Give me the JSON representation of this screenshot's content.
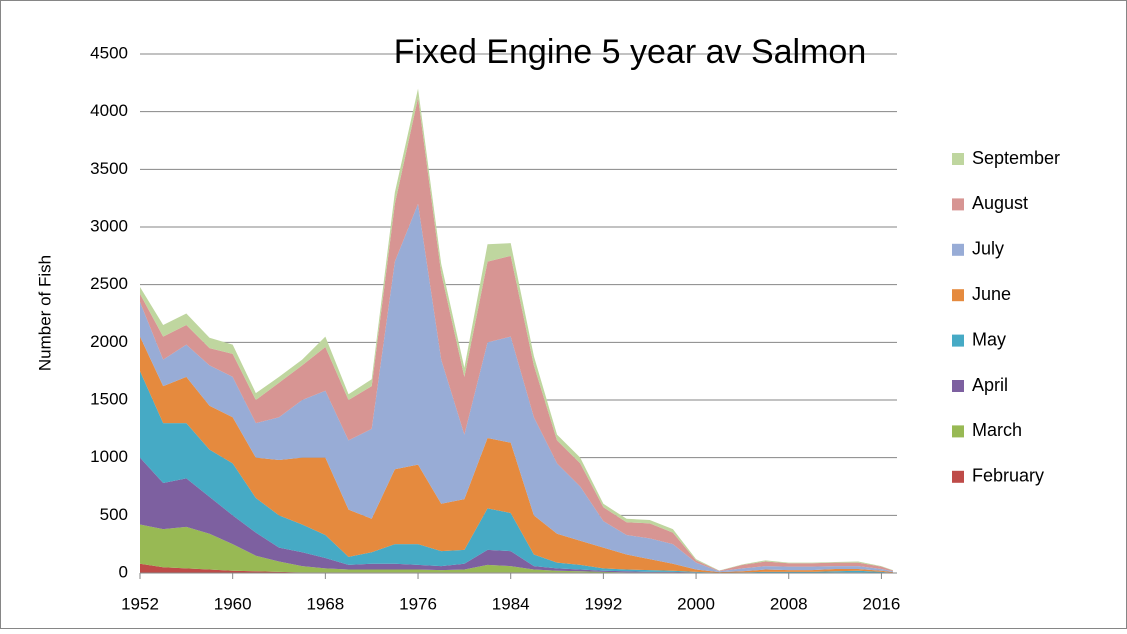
{
  "chart_data": {
    "type": "stacked_area",
    "title": "Fixed Engine 5 year av Salmon",
    "y_label": "Number of Fish",
    "x": [
      1952,
      1954,
      1956,
      1958,
      1960,
      1962,
      1964,
      1966,
      1968,
      1970,
      1972,
      1974,
      1976,
      1978,
      1980,
      1982,
      1984,
      1986,
      1988,
      1990,
      1992,
      1994,
      1996,
      1998,
      2000,
      2002,
      2004,
      2006,
      2008,
      2010,
      2012,
      2014,
      2016,
      2017
    ],
    "xlim": [
      1952,
      2017
    ],
    "xticks": [
      1952,
      1960,
      1968,
      1976,
      1984,
      1992,
      2000,
      2008,
      2016
    ],
    "ylim": [
      0,
      4500
    ],
    "yticks": [
      0,
      500,
      1000,
      1500,
      2000,
      2500,
      3000,
      3500,
      4000,
      4500
    ],
    "grid": true,
    "legend": "right",
    "series": [
      {
        "name": "February",
        "color": "#be4b48",
        "values": [
          80,
          50,
          40,
          30,
          20,
          15,
          10,
          5,
          5,
          5,
          5,
          5,
          5,
          5,
          5,
          5,
          5,
          5,
          5,
          5,
          3,
          2,
          2,
          2,
          1,
          0,
          0,
          0,
          0,
          0,
          0,
          0,
          0,
          0
        ]
      },
      {
        "name": "March",
        "color": "#98b954",
        "values": [
          340,
          330,
          360,
          310,
          230,
          135,
          90,
          55,
          35,
          25,
          25,
          25,
          25,
          20,
          25,
          65,
          55,
          25,
          15,
          10,
          7,
          3,
          3,
          3,
          2,
          1,
          1,
          1,
          1,
          1,
          1,
          1,
          1,
          0
        ]
      },
      {
        "name": "April",
        "color": "#7d60a0",
        "values": [
          580,
          400,
          420,
          320,
          250,
          200,
          120,
          120,
          90,
          40,
          50,
          50,
          40,
          35,
          50,
          130,
          130,
          30,
          20,
          15,
          10,
          10,
          5,
          5,
          2,
          1,
          1,
          2,
          2,
          2,
          4,
          4,
          2,
          1
        ]
      },
      {
        "name": "May",
        "color": "#46aac5",
        "values": [
          750,
          520,
          480,
          410,
          450,
          300,
          280,
          240,
          200,
          70,
          100,
          170,
          180,
          130,
          120,
          360,
          330,
          100,
          50,
          40,
          20,
          15,
          15,
          10,
          5,
          1,
          3,
          7,
          7,
          7,
          10,
          15,
          7,
          2
        ]
      },
      {
        "name": "June",
        "color": "#e58a3e",
        "values": [
          300,
          320,
          400,
          380,
          400,
          350,
          480,
          580,
          670,
          410,
          290,
          650,
          690,
          410,
          440,
          610,
          610,
          340,
          250,
          210,
          180,
          130,
          95,
          60,
          20,
          5,
          10,
          20,
          15,
          15,
          20,
          15,
          10,
          5
        ]
      },
      {
        "name": "July",
        "color": "#98acd6",
        "values": [
          300,
          230,
          280,
          350,
          350,
          300,
          370,
          500,
          580,
          600,
          780,
          1800,
          2260,
          1250,
          560,
          830,
          920,
          850,
          610,
          470,
          230,
          170,
          180,
          170,
          60,
          7,
          25,
          30,
          30,
          30,
          25,
          25,
          15,
          7
        ]
      },
      {
        "name": "August",
        "color": "#d79593",
        "values": [
          70,
          200,
          170,
          150,
          200,
          200,
          300,
          300,
          380,
          350,
          370,
          500,
          920,
          750,
          500,
          700,
          700,
          450,
          200,
          200,
          120,
          110,
          130,
          100,
          20,
          5,
          30,
          40,
          30,
          30,
          30,
          30,
          20,
          7
        ]
      },
      {
        "name": "September",
        "color": "#bfd69f",
        "values": [
          60,
          100,
          100,
          90,
          80,
          60,
          50,
          50,
          90,
          50,
          60,
          100,
          80,
          80,
          80,
          150,
          110,
          80,
          50,
          50,
          30,
          30,
          30,
          30,
          10,
          2,
          5,
          10,
          5,
          5,
          5,
          10,
          5,
          3
        ]
      }
    ]
  }
}
